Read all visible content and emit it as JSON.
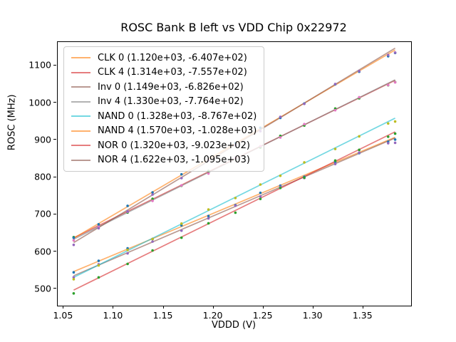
{
  "title": "ROSC Bank B left vs VDD Chip 0x22972",
  "colors": {
    "background": "#ffffff",
    "spine": "#000000",
    "text": "#000000",
    "legend_border": "#cccccc",
    "legend_background": "rgba(255,255,255,0.8)"
  },
  "chart_data": {
    "type": "scatter",
    "title": "ROSC Bank B left vs VDD Chip 0x22972",
    "xlabel": "VDDD (V)",
    "ylabel": "ROSC (MHz)",
    "xlim": [
      1.044,
      1.398
    ],
    "ylim": [
      455,
      1163
    ],
    "x_tick_values": [
      1.05,
      1.1,
      1.15,
      1.2,
      1.25,
      1.3,
      1.35
    ],
    "x_tick_labels": [
      "1.05",
      "1.10",
      "1.15",
      "1.20",
      "1.25",
      "1.30",
      "1.35"
    ],
    "y_tick_values": [
      500,
      600,
      700,
      800,
      900,
      1000,
      1100
    ],
    "y_tick_labels": [
      "500",
      "600",
      "700",
      "800",
      "900",
      "1000",
      "1100"
    ],
    "grid": false,
    "legend_position": "upper-left",
    "line_alpha": 0.6,
    "x": [
      1.06,
      1.085,
      1.114,
      1.139,
      1.168,
      1.195,
      1.222,
      1.247,
      1.267,
      1.291,
      1.322,
      1.346,
      1.375,
      1.382
    ],
    "fit_x_range": [
      1.06,
      1.382
    ],
    "series": [
      {
        "name": "CLK 0",
        "legend_label": "CLK 0 (1.120e+03, -6.407e+02)",
        "slope": 1120.0,
        "intercept": -640.7,
        "marker_color": "#1f77b4",
        "line_color": "#ff7f0e",
        "y": [
          544.5,
          575.5,
          609.0,
          634.0,
          670.5,
          695.7,
          725.0,
          758.0,
          777.3,
          801.2,
          840.9,
          864.8,
          895.3,
          901.1
        ]
      },
      {
        "name": "CLK 4",
        "legend_label": "CLK 4 (1.314e+03, -7.557e+02)",
        "slope": 1314.0,
        "intercept": -755.7,
        "marker_color": "#2ca02c",
        "line_color": "#d62728",
        "y": [
          639.1,
          669.0,
          705.1,
          742.0,
          777.1,
          816.5,
          849.0,
          879.9,
          911.1,
          938.7,
          984.4,
          1011.9,
          1047.1,
          1055.3
        ]
      },
      {
        "name": "Inv 0",
        "legend_label": "Inv 0 (1.149e+03, -6.826e+02)",
        "slope": 1149.0,
        "intercept": -682.6,
        "marker_color": "#9467bd",
        "line_color": "#8c564b",
        "y": [
          531.3,
          566.1,
          595.4,
          627.1,
          656.4,
          689.5,
          723.5,
          748.2,
          774.2,
          797.8,
          835.4,
          866.0,
          891.3,
          892.3
        ]
      },
      {
        "name": "Inv 4",
        "legend_label": "Inv 4 (1.330e+03, -7.764e+02)",
        "slope": 1330.0,
        "intercept": -776.4,
        "marker_color": "#e377c2",
        "line_color": "#7f7f7f",
        "y": [
          630.4,
          667.7,
          707.2,
          736.5,
          778.0,
          809.9,
          850.9,
          883.1,
          906.7,
          942.6,
          979.9,
          1014.8,
          1047.4,
          1054.7
        ]
      },
      {
        "name": "NAND 0",
        "legend_label": "NAND 0 (1.328e+03, -8.767e+02)",
        "slope": 1328.0,
        "intercept": -876.7,
        "marker_color": "#bcbd22",
        "line_color": "#17becf",
        "y": [
          526.0,
          563.2,
          604.7,
          633.9,
          675.4,
          713.3,
          744.1,
          780.3,
          803.9,
          839.8,
          875.9,
          909.8,
          944.3,
          949.6
        ]
      },
      {
        "name": "NAND 4",
        "legend_label": "NAND 4 (1.570e+03, -1.028e+03)",
        "slope": 1570.0,
        "intercept": -1028.0,
        "marker_color": "#1f77b4",
        "line_color": "#ff7f0e",
        "y": [
          637.2,
          673.5,
          723.0,
          759.2,
          807.8,
          845.2,
          891.5,
          932.8,
          959.2,
          997.9,
          1049.5,
          1083.2,
          1124.8,
          1133.7
        ]
      },
      {
        "name": "NOR 0",
        "legend_label": "NOR 0 (1.320e+03, -9.023e+02)",
        "slope": 1320.0,
        "intercept": -902.3,
        "marker_color": "#2ca02c",
        "line_color": "#d62728",
        "y": [
          487.9,
          530.9,
          567.2,
          603.2,
          637.5,
          676.1,
          704.7,
          741.7,
          771.1,
          798.8,
          844.7,
          873.4,
          908.7,
          916.9
        ]
      },
      {
        "name": "NOR 4",
        "legend_label": "NOR 4 (1.622e+03, -1.095e+03)",
        "slope": 1622.0,
        "intercept": -1095.0,
        "marker_color": "#9467bd",
        "line_color": "#8c564b",
        "y": [
          618.3,
          662.9,
          707.9,
          753.5,
          797.5,
          845.3,
          886.1,
          923.6,
          962.1,
          997.0,
          1050.3,
          1085.2,
          1128.3,
          1134.6
        ]
      }
    ]
  }
}
